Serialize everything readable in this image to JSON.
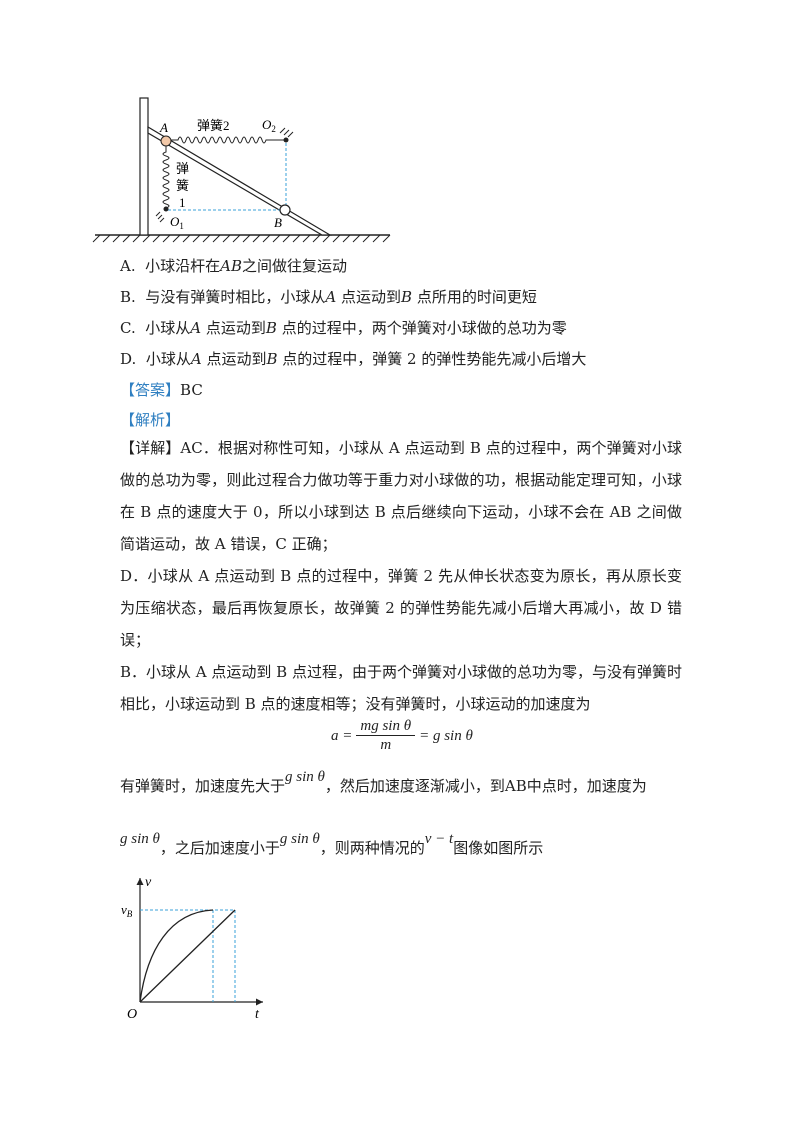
{
  "figure1": {
    "label_A": "A",
    "label_B": "B",
    "label_O1": "O",
    "label_O1_sub": "1",
    "label_O2": "O",
    "label_O2_sub": "2",
    "spring2_label": "弹簧2",
    "spring1_label": [
      "弹",
      "簧",
      "1"
    ]
  },
  "options": [
    {
      "prefix": "A.",
      "pre": "小球沿杆在",
      "var": "AB",
      "post": "之间做往复运动"
    },
    {
      "prefix": "B.",
      "pre": "与没有弹簧时相比，小球从",
      "var": "A",
      "mid": "点运动到",
      "var2": "B",
      "post": "点所用的时间更短"
    },
    {
      "prefix": "C.",
      "pre": "小球从",
      "var": "A",
      "mid": "点运动到",
      "var2": "B",
      "post": "点的过程中，两个弹簧对小球做的总功为零"
    },
    {
      "prefix": "D.",
      "pre": "小球从",
      "var": "A",
      "mid": "点运动到",
      "var2": "B",
      "post": "点的过程中，弹簧 2 的弹性势能先减小后增大"
    }
  ],
  "answer": {
    "tag": "【答案】",
    "value": "BC"
  },
  "analysis_tag": "【解析】",
  "detail": {
    "tag": "【详解】",
    "p1": "AC．根据对称性可知，小球从 A 点运动到 B 点的过程中，两个弹簧对小球做的总功为零，则此过程合力做功等于重力对小球做的功，根据动能定理可知，小球在 B 点的速度大于 0，所以小球到达 B 点后继续向下运动，小球不会在 AB 之间做简谐运动，故 A 错误，C 正确；",
    "p2": "D．小球从 A 点运动到 B 点的过程中，弹簧 2 先从伸长状态变为原长，再从原长变为压缩状态，最后再恢复原长，故弹簧 2 的弹性势能先减小后增大再减小，故 D 错误；",
    "p3": "B．小球从 A 点运动到 B 点过程，由于两个弹簧对小球做的总功为零，与没有弹簧时相比，小球运动到 B 点的速度相等；没有弹簧时，小球运动的加速度为"
  },
  "formula": {
    "lhs": "a =",
    "num": "mg sin θ",
    "den": "m",
    "rhs": "= g sin θ"
  },
  "line_after1": {
    "pre": "有弹簧时，加速度先大于",
    "f1": "g sin θ",
    "post": "，然后加速度逐渐减小，到AB中点时，加速度为"
  },
  "line_after2": {
    "f1": "g sin θ",
    "mid": "，之后加速度小于",
    "f2": "g sin θ",
    "mid2": "，则两种情况的",
    "f3": "v − t",
    "post": "图像如图所示"
  },
  "graph": {
    "ylabel": "v",
    "xlabel": "t",
    "origin": "O",
    "vb": "v",
    "vb_sub": "B"
  }
}
